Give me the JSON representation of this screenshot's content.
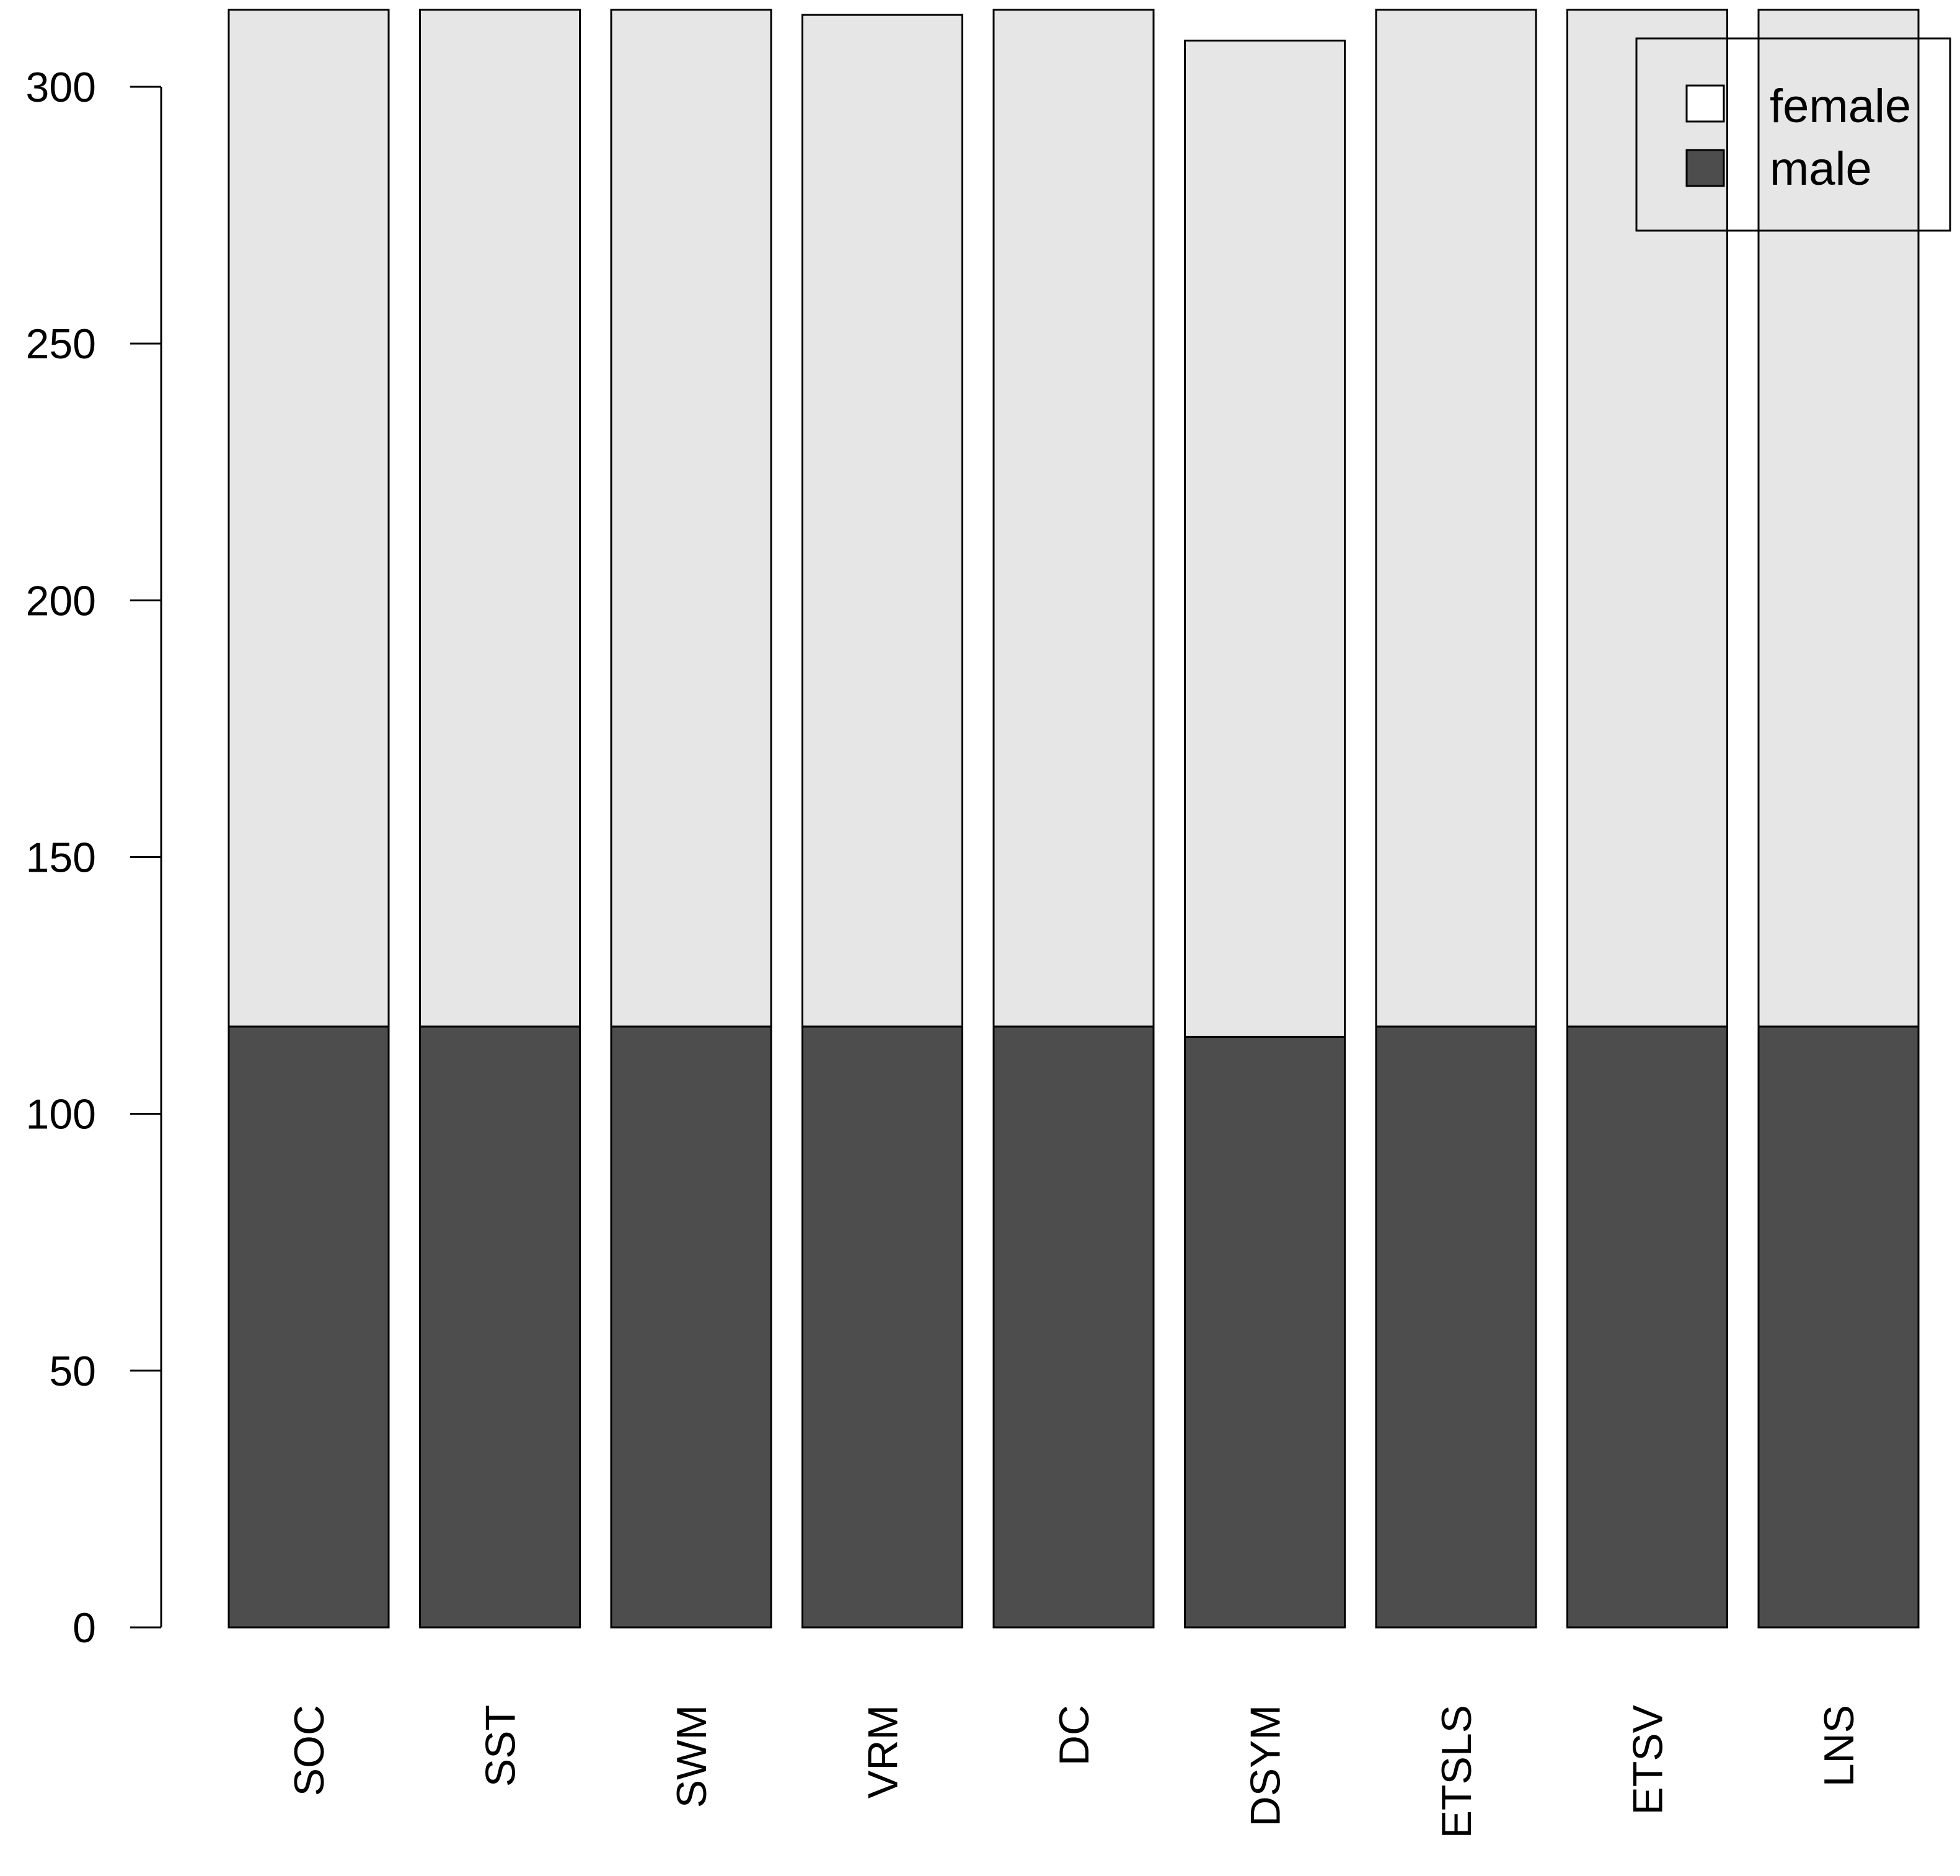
{
  "chart_data": {
    "type": "bar",
    "stacked": true,
    "categories": [
      "SOC",
      "SST",
      "SWM",
      "VRM",
      "DC",
      "DSYM",
      "ETSLS",
      "ETSV",
      "LNS"
    ],
    "series": [
      {
        "name": "male",
        "color": "#4d4d4d",
        "values": [
          117,
          117,
          117,
          117,
          117,
          115,
          117,
          117,
          117
        ]
      },
      {
        "name": "female",
        "color": "#e6e6e6",
        "values": [
          198,
          198,
          198,
          197,
          198,
          194,
          198,
          198,
          198
        ]
      }
    ],
    "yticks": [
      "0",
      "50",
      "100",
      "150",
      "200",
      "250",
      "300"
    ],
    "ylim": [
      0,
      315
    ],
    "legend": {
      "position": "top-right",
      "entries": [
        "female",
        "male"
      ],
      "colors": [
        "#ffffff",
        "#4d4d4d"
      ]
    },
    "grid": false,
    "title": "",
    "xlabel": "",
    "ylabel": ""
  }
}
